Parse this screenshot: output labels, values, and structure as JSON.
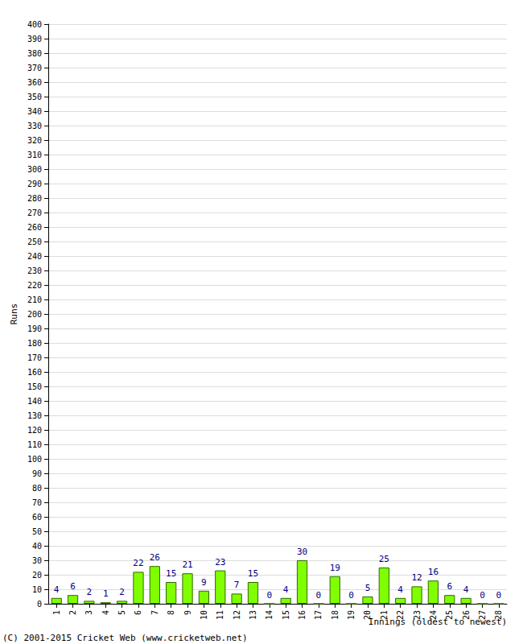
{
  "chart_data": {
    "type": "bar",
    "x_label": "Innings (oldest to newest)",
    "y_label": "Runs",
    "annotations": [
      "(C) 2001-2015 Cricket Web (www.cricketweb.net)"
    ],
    "categories": [
      "1",
      "2",
      "3",
      "4",
      "5",
      "6",
      "7",
      "8",
      "9",
      "10",
      "11",
      "12",
      "13",
      "14",
      "15",
      "16",
      "17",
      "18",
      "19",
      "20",
      "21",
      "22",
      "23",
      "24",
      "25",
      "26",
      "27",
      "28"
    ],
    "values": [
      4,
      6,
      2,
      1,
      2,
      22,
      26,
      15,
      21,
      9,
      23,
      7,
      15,
      0,
      4,
      30,
      0,
      19,
      0,
      5,
      25,
      4,
      12,
      16,
      6,
      4,
      0,
      0
    ],
    "color": "#80ff00",
    "ylim": [
      0,
      400
    ],
    "yticks": [
      0,
      10,
      20,
      30,
      40,
      50,
      60,
      70,
      80,
      90,
      100,
      110,
      120,
      130,
      140,
      150,
      160,
      170,
      180,
      190,
      200,
      210,
      220,
      230,
      240,
      250,
      260,
      270,
      280,
      290,
      300,
      310,
      320,
      330,
      340,
      350,
      360,
      370,
      380,
      390,
      400
    ],
    "grid": true,
    "data_labels": true
  }
}
